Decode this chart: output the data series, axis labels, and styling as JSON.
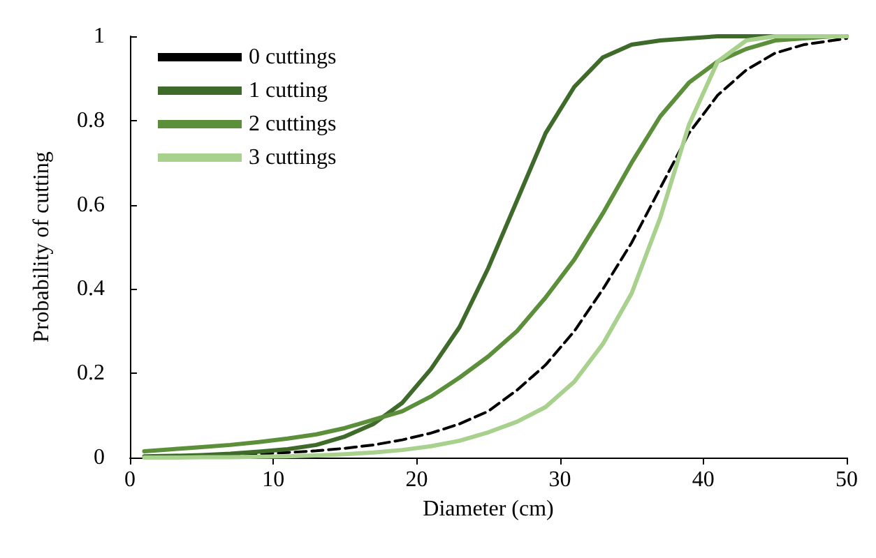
{
  "chart_data": {
    "type": "line",
    "xlabel": "Diameter (cm)",
    "ylabel": "Probability of cutting",
    "x": [
      1,
      3,
      5,
      7,
      9,
      11,
      13,
      15,
      17,
      19,
      21,
      23,
      25,
      27,
      29,
      31,
      33,
      35,
      37,
      39,
      41,
      43,
      45,
      47,
      49,
      50
    ],
    "xlim": [
      0,
      50
    ],
    "xticks": [
      0,
      10,
      20,
      30,
      40,
      50
    ],
    "ylim": [
      0,
      1
    ],
    "yticks": [
      0,
      0.2,
      0.4,
      0.6,
      0.8,
      1
    ],
    "grid": false,
    "legend": "top left",
    "marker": "none",
    "line_style": "solid",
    "series": [
      {
        "name": "0 cuttings",
        "color": "#000000",
        "line_style": "dashed",
        "values": [
          0.003,
          0.004,
          0.005,
          0.007,
          0.009,
          0.012,
          0.016,
          0.022,
          0.03,
          0.042,
          0.058,
          0.08,
          0.11,
          0.16,
          0.22,
          0.3,
          0.4,
          0.51,
          0.64,
          0.77,
          0.86,
          0.92,
          0.96,
          0.98,
          0.99,
          0.995
        ]
      },
      {
        "name": "1 cutting",
        "color": "#3e6b2a",
        "values": [
          0.003,
          0.004,
          0.006,
          0.009,
          0.014,
          0.02,
          0.03,
          0.05,
          0.08,
          0.13,
          0.21,
          0.31,
          0.45,
          0.61,
          0.77,
          0.88,
          0.95,
          0.98,
          0.99,
          0.995,
          1,
          1,
          1,
          1,
          1,
          1
        ]
      },
      {
        "name": "2 cuttings",
        "color": "#5b8f3a",
        "values": [
          0.015,
          0.02,
          0.025,
          0.03,
          0.037,
          0.045,
          0.055,
          0.07,
          0.09,
          0.11,
          0.145,
          0.19,
          0.24,
          0.3,
          0.38,
          0.47,
          0.58,
          0.7,
          0.81,
          0.89,
          0.94,
          0.97,
          0.99,
          0.995,
          1,
          1
        ]
      },
      {
        "name": "3 cuttings",
        "color": "#a9d18e",
        "values": [
          0,
          0,
          0.001,
          0.001,
          0.002,
          0.003,
          0.005,
          0.008,
          0.012,
          0.018,
          0.027,
          0.04,
          0.06,
          0.085,
          0.12,
          0.18,
          0.27,
          0.39,
          0.57,
          0.79,
          0.94,
          0.99,
          1,
          1,
          1,
          1
        ]
      }
    ]
  }
}
